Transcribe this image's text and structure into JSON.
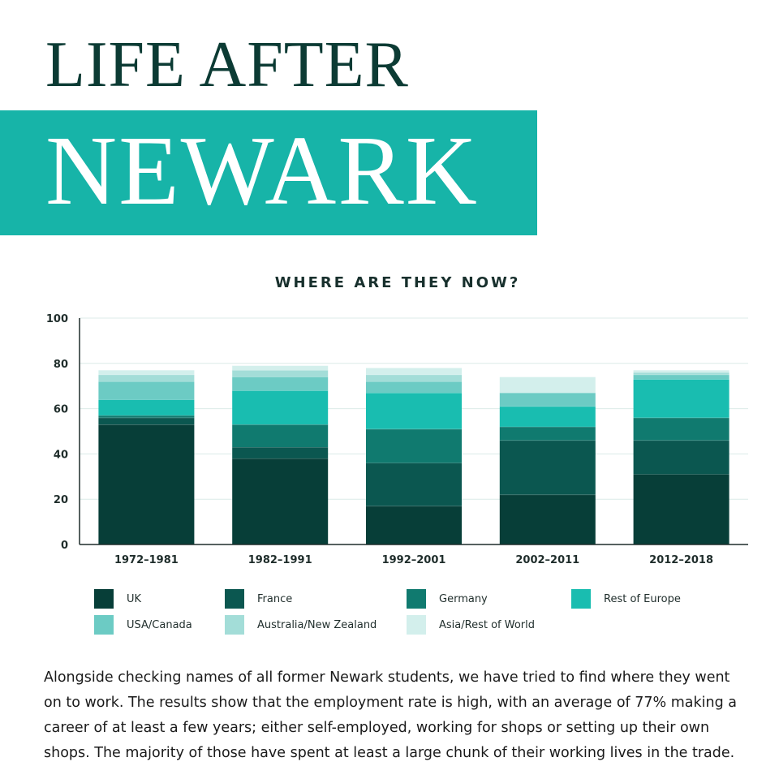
{
  "header": {
    "line1": "LIFE AFTER",
    "line2": "NEWARK"
  },
  "chart_data": {
    "type": "bar",
    "stacked": true,
    "title": "WHERE ARE THEY NOW?",
    "categories": [
      "1972–1981",
      "1982–1991",
      "1992–2001",
      "2002–2011",
      "2012–2018"
    ],
    "ylim": [
      0,
      100
    ],
    "yticks": [
      0,
      20,
      40,
      60,
      80,
      100
    ],
    "grid": true,
    "legend_position": "bottom",
    "series": [
      {
        "name": "UK",
        "color": "#073e38",
        "values": [
          53,
          38,
          17,
          22,
          31
        ]
      },
      {
        "name": "France",
        "color": "#0b5750",
        "values": [
          3,
          5,
          19,
          24,
          15
        ]
      },
      {
        "name": "Germany",
        "color": "#107a6f",
        "values": [
          1,
          10,
          15,
          6,
          10
        ]
      },
      {
        "name": "Rest of Europe",
        "color": "#19bdb0",
        "values": [
          7,
          15,
          16,
          9,
          17
        ]
      },
      {
        "name": "USA/Canada",
        "color": "#6ccbc4",
        "values": [
          8,
          6,
          5,
          6,
          2
        ]
      },
      {
        "name": "Australia/New Zealand",
        "color": "#a3ddd8",
        "values": [
          3,
          3,
          3,
          0,
          1
        ]
      },
      {
        "name": "Asia/Rest of World",
        "color": "#d3efec",
        "values": [
          2,
          2,
          3,
          7,
          1
        ]
      }
    ]
  },
  "body": {
    "paragraph": "Alongside checking names of all former Newark students, we have tried to find where they went on to work. The results show that the employment rate is high, with an average of 77% making a career of at least a few years; either self-employed, working for shops or setting up their own shops. The majority of those have spent at least a large chunk of their working lives in the trade."
  }
}
